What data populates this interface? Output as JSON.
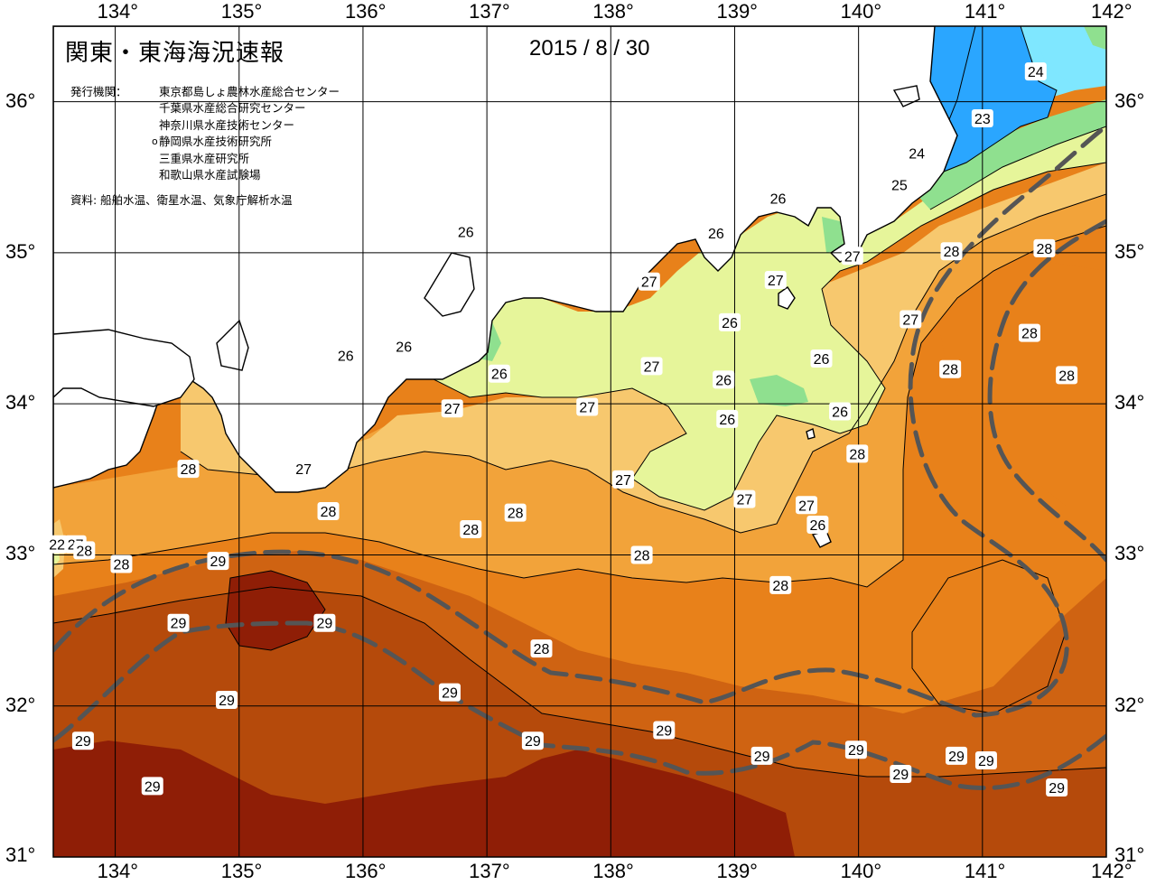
{
  "header": {
    "title": "関東・東海海況速報",
    "date": "2015 / 8 / 30",
    "publisher_label": "発行機関：",
    "publishers": [
      "東京都島しょ農林水産総合センター",
      "千葉県水産総合研究センター",
      "神奈川県水産技術センター",
      "静岡県水産技術研究所",
      "三重県水産研究所",
      "和歌山県水産試験場"
    ],
    "marked_publisher_index": 3,
    "source": "資料: 船舶水温、衛星水温、気象庁解析水温"
  },
  "map": {
    "lon_range": [
      133.5,
      142
    ],
    "lat_range": [
      31,
      36.5
    ],
    "lon_ticks": [
      134,
      135,
      136,
      137,
      138,
      139,
      140,
      141,
      142
    ],
    "lat_ticks": [
      31,
      32,
      33,
      34,
      35,
      36
    ],
    "lon_tick_labels": [
      "134°",
      "135°",
      "136°",
      "137°",
      "138°",
      "139°",
      "140°",
      "141°",
      "142°"
    ],
    "lat_tick_labels": [
      "31°",
      "32°",
      "33°",
      "34°",
      "35°",
      "36°"
    ],
    "colors": {
      "t23": "#2aa6ff",
      "t24": "#7fe7ff",
      "t25": "#8fe08f",
      "t26": "#e6f59a",
      "t27": "#f7c86e",
      "t28": "#f2a33a",
      "t28b": "#e8811a",
      "t29": "#cf6312",
      "t29b": "#b54a0b",
      "t30": "#8f1e06",
      "land": "#ffffff",
      "coast": "#000000",
      "kuroshio": "#555555"
    },
    "isotherm_labels": [
      {
        "text": "24",
        "lon": 141.43,
        "lat": 36.2
      },
      {
        "text": "23",
        "lon": 141.0,
        "lat": 35.89
      },
      {
        "text": "24",
        "lon": 140.47,
        "lat": 35.66
      },
      {
        "text": "25",
        "lon": 140.33,
        "lat": 35.45
      },
      {
        "text": "26",
        "lon": 139.35,
        "lat": 35.36
      },
      {
        "text": "26",
        "lon": 136.83,
        "lat": 35.14
      },
      {
        "text": "26",
        "lon": 138.85,
        "lat": 35.13
      },
      {
        "text": "27",
        "lon": 139.95,
        "lat": 34.98
      },
      {
        "text": "28",
        "lon": 140.75,
        "lat": 35.01
      },
      {
        "text": "28",
        "lon": 141.5,
        "lat": 35.03
      },
      {
        "text": "27",
        "lon": 138.31,
        "lat": 34.81
      },
      {
        "text": "27",
        "lon": 139.33,
        "lat": 34.82
      },
      {
        "text": "26",
        "lon": 138.96,
        "lat": 34.54
      },
      {
        "text": "27",
        "lon": 140.42,
        "lat": 34.56
      },
      {
        "text": "28",
        "lon": 141.38,
        "lat": 34.47
      },
      {
        "text": "26",
        "lon": 136.33,
        "lat": 34.38
      },
      {
        "text": "26",
        "lon": 135.86,
        "lat": 34.32
      },
      {
        "text": "26",
        "lon": 137.1,
        "lat": 34.2
      },
      {
        "text": "27",
        "lon": 138.33,
        "lat": 34.25
      },
      {
        "text": "26",
        "lon": 139.7,
        "lat": 34.3
      },
      {
        "text": "28",
        "lon": 140.74,
        "lat": 34.23
      },
      {
        "text": "28",
        "lon": 141.68,
        "lat": 34.19
      },
      {
        "text": "26",
        "lon": 138.91,
        "lat": 34.16
      },
      {
        "text": "27",
        "lon": 136.72,
        "lat": 33.97
      },
      {
        "text": "27",
        "lon": 137.81,
        "lat": 33.98
      },
      {
        "text": "26",
        "lon": 139.85,
        "lat": 33.95
      },
      {
        "text": "26",
        "lon": 138.94,
        "lat": 33.9
      },
      {
        "text": "28",
        "lon": 139.99,
        "lat": 33.67
      },
      {
        "text": "28",
        "lon": 134.59,
        "lat": 33.57
      },
      {
        "text": "27",
        "lon": 135.52,
        "lat": 33.57
      },
      {
        "text": "27",
        "lon": 138.1,
        "lat": 33.5
      },
      {
        "text": "27",
        "lon": 139.08,
        "lat": 33.37
      },
      {
        "text": "27",
        "lon": 139.58,
        "lat": 33.33
      },
      {
        "text": "28",
        "lon": 135.72,
        "lat": 33.29
      },
      {
        "text": "28",
        "lon": 137.23,
        "lat": 33.28
      },
      {
        "text": "28",
        "lon": 136.87,
        "lat": 33.17
      },
      {
        "text": "26",
        "lon": 139.67,
        "lat": 33.2
      },
      {
        "text": "22",
        "lon": 133.53,
        "lat": 33.07
      },
      {
        "text": "27",
        "lon": 133.68,
        "lat": 33.07
      },
      {
        "text": "28",
        "lon": 133.75,
        "lat": 33.03
      },
      {
        "text": "28",
        "lon": 134.05,
        "lat": 32.94
      },
      {
        "text": "29",
        "lon": 134.83,
        "lat": 32.96
      },
      {
        "text": "28",
        "lon": 138.25,
        "lat": 33.0
      },
      {
        "text": "28",
        "lon": 139.37,
        "lat": 32.8
      },
      {
        "text": "29",
        "lon": 134.51,
        "lat": 32.55
      },
      {
        "text": "29",
        "lon": 135.69,
        "lat": 32.55
      },
      {
        "text": "28",
        "lon": 137.44,
        "lat": 32.38
      },
      {
        "text": "29",
        "lon": 136.7,
        "lat": 32.09
      },
      {
        "text": "29",
        "lon": 134.9,
        "lat": 32.04
      },
      {
        "text": "29",
        "lon": 138.43,
        "lat": 31.84
      },
      {
        "text": "29",
        "lon": 137.37,
        "lat": 31.77
      },
      {
        "text": "29",
        "lon": 133.74,
        "lat": 31.77
      },
      {
        "text": "29",
        "lon": 139.22,
        "lat": 31.67
      },
      {
        "text": "29",
        "lon": 139.98,
        "lat": 31.71
      },
      {
        "text": "29",
        "lon": 140.79,
        "lat": 31.67
      },
      {
        "text": "29",
        "lon": 141.03,
        "lat": 31.64
      },
      {
        "text": "29",
        "lon": 140.34,
        "lat": 31.55
      },
      {
        "text": "29",
        "lon": 134.3,
        "lat": 31.47
      },
      {
        "text": "29",
        "lon": 141.6,
        "lat": 31.46
      }
    ]
  }
}
